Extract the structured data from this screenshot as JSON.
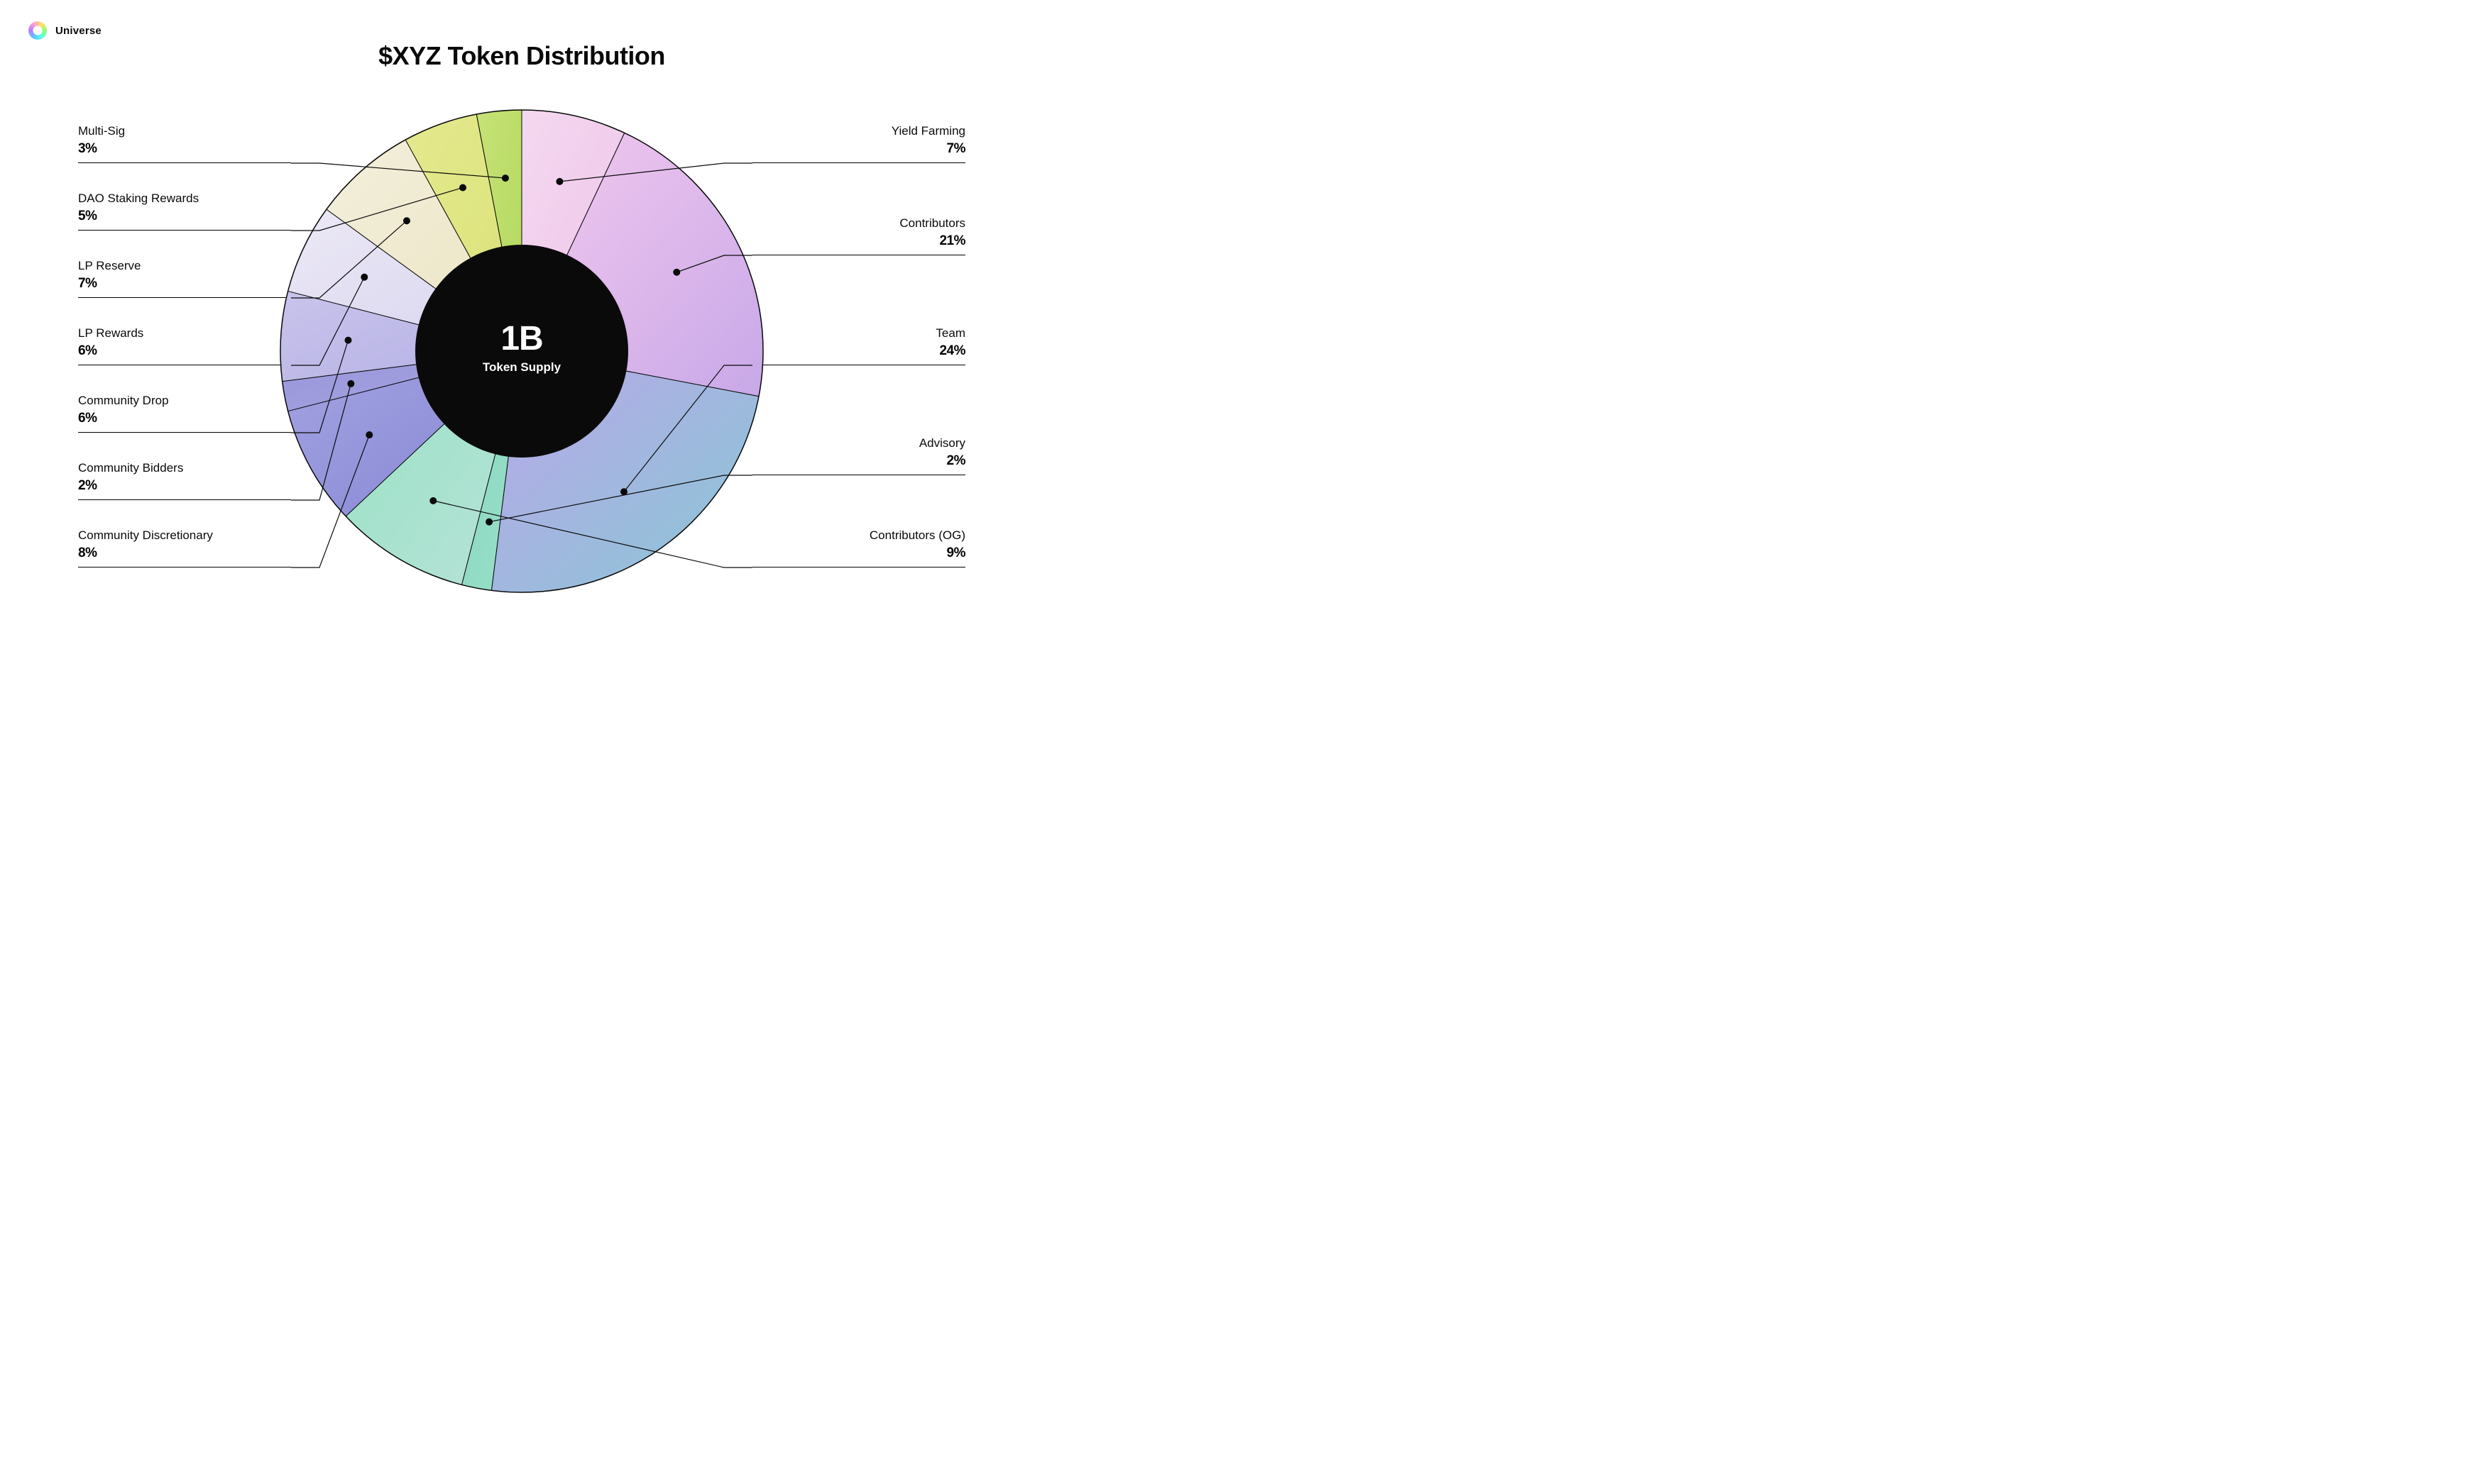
{
  "brand": {
    "name": "Universe"
  },
  "title": "$XYZ Token Distribution",
  "center": {
    "supply": "1B",
    "caption": "Token Supply"
  },
  "chart": {
    "type": "pie",
    "outer_radius": 340,
    "inner_radius": 150,
    "center_fill": "#0a0a0a",
    "background": "#ffffff",
    "stroke": "#0a0a0a",
    "slices": [
      {
        "label": "Yield Farming",
        "value": 7,
        "side": "right",
        "row": 0,
        "color1": "#f5d8f0",
        "color2": "#ecc4e8"
      },
      {
        "label": "Contributors",
        "value": 21,
        "side": "right",
        "row": 1,
        "color1": "#f3c9ee",
        "color2": "#c8a8e8"
      },
      {
        "label": "Team",
        "value": 24,
        "side": "right",
        "row": 2,
        "color1": "#bba6ea",
        "color2": "#88c8d4"
      },
      {
        "label": "Advisory",
        "value": 2,
        "side": "right",
        "row": 3,
        "color1": "#8bd4c8",
        "color2": "#97e2c4"
      },
      {
        "label": "Contributors (OG)",
        "value": 9,
        "side": "right",
        "row": 4,
        "color1": "#97e2c4",
        "color2": "#b8e2d8"
      },
      {
        "label": "Community Discretionary",
        "value": 8,
        "side": "left",
        "row": 6,
        "color1": "#a3a3e2",
        "color2": "#8686d4"
      },
      {
        "label": "Community Bidders",
        "value": 2,
        "side": "left",
        "row": 5,
        "color1": "#9795d9",
        "color2": "#a8a5e2"
      },
      {
        "label": "Community Drop",
        "value": 6,
        "side": "left",
        "row": 4,
        "color1": "#c9c4ec",
        "color2": "#b4b0e4"
      },
      {
        "label": "LP Rewards",
        "value": 6,
        "side": "left",
        "row": 3,
        "color1": "#ece9f6",
        "color2": "#d8d3ee"
      },
      {
        "label": "LP Reserve",
        "value": 7,
        "side": "left",
        "row": 2,
        "color1": "#f3efdc",
        "color2": "#ebe4c2"
      },
      {
        "label": "DAO Staking Rewards",
        "value": 5,
        "side": "left",
        "row": 1,
        "color1": "#e4e98e",
        "color2": "#d9e277"
      },
      {
        "label": "Multi-Sig",
        "value": 3,
        "side": "left",
        "row": 0,
        "color1": "#c7e276",
        "color2": "#b2d85f"
      }
    ],
    "label_row_y_left": [
      40,
      135,
      230,
      325,
      420,
      515,
      610
    ],
    "label_row_y_right": [
      40,
      170,
      325,
      480,
      610
    ],
    "label_rule_offset": 55
  }
}
